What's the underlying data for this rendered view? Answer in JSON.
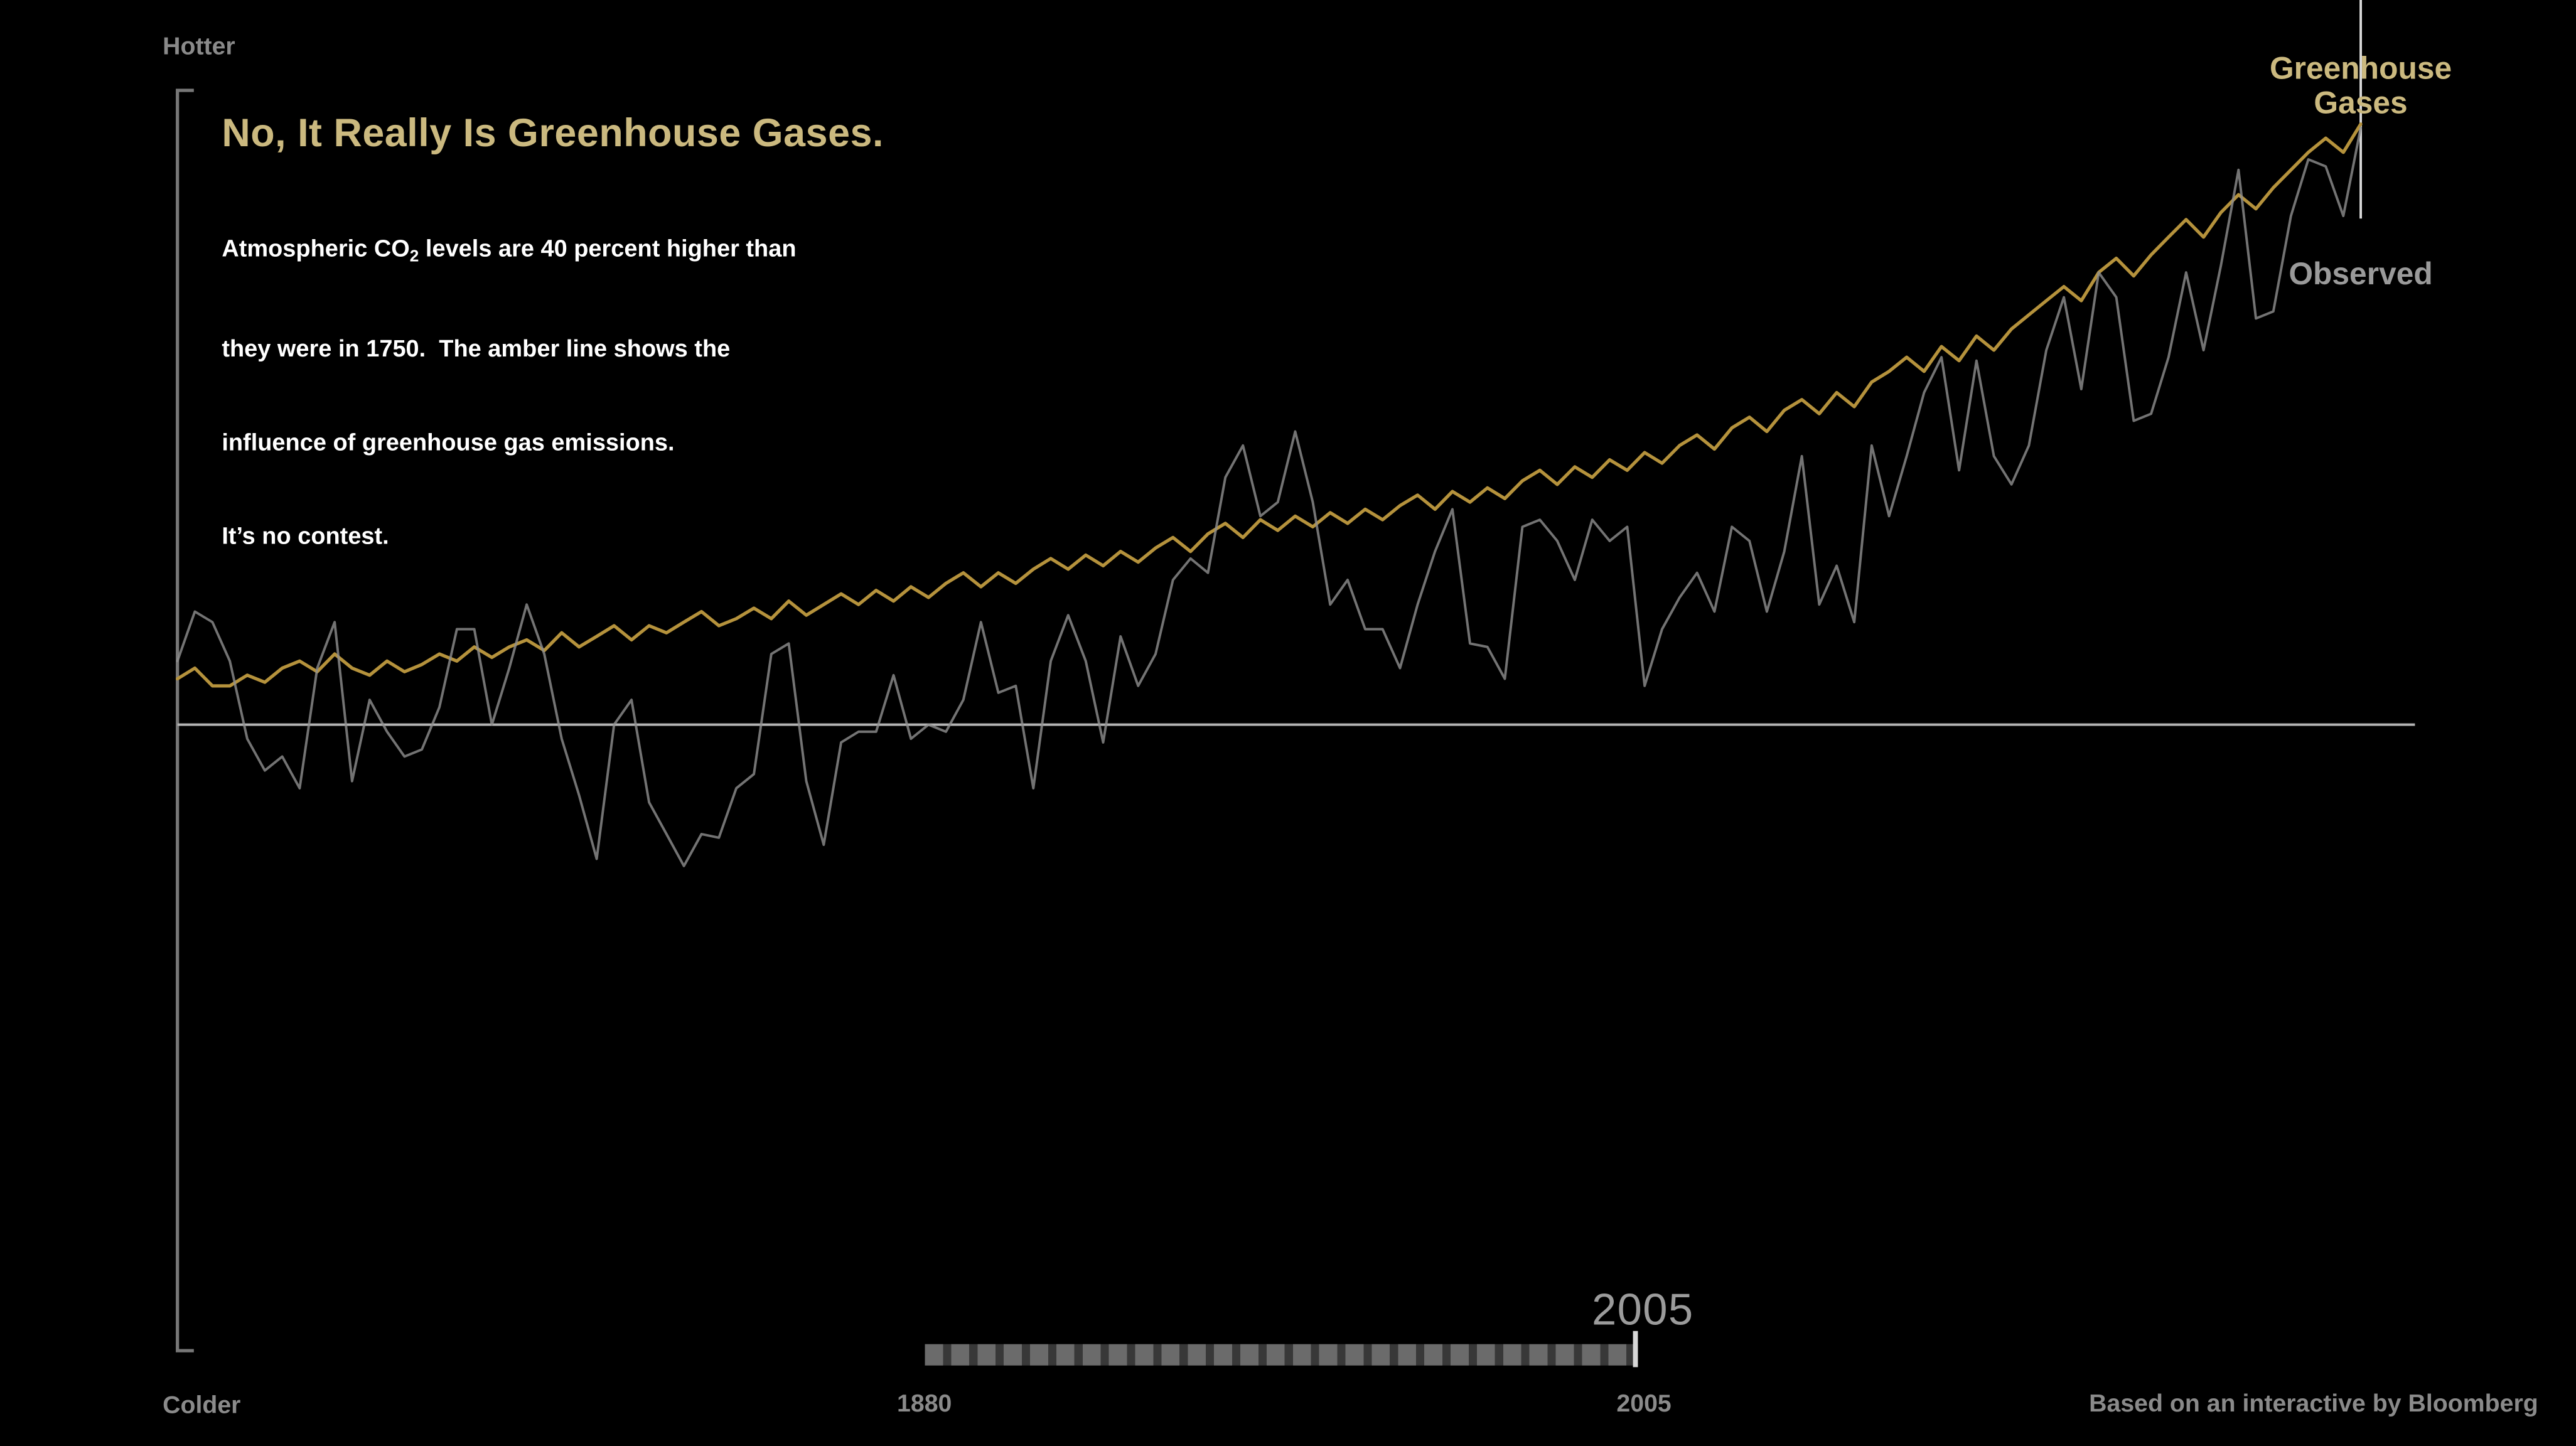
{
  "page": {
    "title": "No, It Really Is Greenhouse Gases.",
    "subtitle_line1_pre": "Atmospheric CO",
    "subtitle_line1_sub": "2",
    "subtitle_line1_post": " levels are 40 percent higher than",
    "subtitle_line2": "they were in 1750.  The amber line shows the",
    "subtitle_line3": "influence of greenhouse gas emissions.",
    "subtitle_line4": "It’s no contest.",
    "credit": "Based on an interactive by Bloomberg"
  },
  "axis": {
    "hotter": "Hotter",
    "colder": "Colder",
    "timeline_start": "1880",
    "timeline_end": "2005",
    "current_year": "2005"
  },
  "legend": {
    "greenhouse_line1": "Greenhouse",
    "greenhouse_line2": "Gases",
    "observed": "Observed"
  },
  "colors": {
    "background": "#000000",
    "amber_line": "#b5923c",
    "amber_text": "#cbb97f",
    "observed_line": "#909090",
    "gray_text": "#8a8a8a",
    "baseline": "#b3b3b3",
    "playhead": "#d8d8d8"
  },
  "chart_data": {
    "type": "line",
    "title": "No, It Really Is Greenhouse Gases.",
    "ylabel_top": "Hotter",
    "ylabel_bottom": "Colder",
    "x_ticks": [
      "1880",
      "2005"
    ],
    "baseline": 0,
    "ylim": [
      -1.8,
      1.8
    ],
    "grid": false,
    "legend_position": "top-right",
    "x": [
      1880,
      1881,
      1882,
      1883,
      1884,
      1885,
      1886,
      1887,
      1888,
      1889,
      1890,
      1891,
      1892,
      1893,
      1894,
      1895,
      1896,
      1897,
      1898,
      1899,
      1900,
      1901,
      1902,
      1903,
      1904,
      1905,
      1906,
      1907,
      1908,
      1909,
      1910,
      1911,
      1912,
      1913,
      1914,
      1915,
      1916,
      1917,
      1918,
      1919,
      1920,
      1921,
      1922,
      1923,
      1924,
      1925,
      1926,
      1927,
      1928,
      1929,
      1930,
      1931,
      1932,
      1933,
      1934,
      1935,
      1936,
      1937,
      1938,
      1939,
      1940,
      1941,
      1942,
      1943,
      1944,
      1945,
      1946,
      1947,
      1948,
      1949,
      1950,
      1951,
      1952,
      1953,
      1954,
      1955,
      1956,
      1957,
      1958,
      1959,
      1960,
      1961,
      1962,
      1963,
      1964,
      1965,
      1966,
      1967,
      1968,
      1969,
      1970,
      1971,
      1972,
      1973,
      1974,
      1975,
      1976,
      1977,
      1978,
      1979,
      1980,
      1981,
      1982,
      1983,
      1984,
      1985,
      1986,
      1987,
      1988,
      1989,
      1990,
      1991,
      1992,
      1993,
      1994,
      1995,
      1996,
      1997,
      1998,
      1999,
      2000,
      2001,
      2002,
      2003,
      2004,
      2005
    ],
    "series": [
      {
        "name": "Greenhouse Gases",
        "color": "#b5923c",
        "opacity": 1,
        "width": 2,
        "values": [
          0.13,
          0.16,
          0.11,
          0.11,
          0.14,
          0.12,
          0.16,
          0.18,
          0.15,
          0.2,
          0.16,
          0.14,
          0.18,
          0.15,
          0.17,
          0.2,
          0.18,
          0.22,
          0.19,
          0.22,
          0.24,
          0.21,
          0.26,
          0.22,
          0.25,
          0.28,
          0.24,
          0.28,
          0.26,
          0.29,
          0.32,
          0.28,
          0.3,
          0.33,
          0.3,
          0.35,
          0.31,
          0.34,
          0.37,
          0.34,
          0.38,
          0.35,
          0.39,
          0.36,
          0.4,
          0.43,
          0.39,
          0.43,
          0.4,
          0.44,
          0.47,
          0.44,
          0.48,
          0.45,
          0.49,
          0.46,
          0.5,
          0.53,
          0.49,
          0.54,
          0.57,
          0.53,
          0.58,
          0.55,
          0.59,
          0.56,
          0.6,
          0.57,
          0.61,
          0.58,
          0.62,
          0.65,
          0.61,
          0.66,
          0.63,
          0.67,
          0.64,
          0.69,
          0.72,
          0.68,
          0.73,
          0.7,
          0.75,
          0.72,
          0.77,
          0.74,
          0.79,
          0.82,
          0.78,
          0.84,
          0.87,
          0.83,
          0.89,
          0.92,
          0.88,
          0.94,
          0.9,
          0.97,
          1.0,
          1.04,
          1.0,
          1.07,
          1.03,
          1.1,
          1.06,
          1.12,
          1.16,
          1.2,
          1.24,
          1.2,
          1.28,
          1.32,
          1.27,
          1.33,
          1.38,
          1.43,
          1.38,
          1.45,
          1.5,
          1.46,
          1.52,
          1.57,
          1.62,
          1.66,
          1.62,
          1.7
        ]
      },
      {
        "name": "Observed",
        "color": "#909090",
        "opacity": 0.8,
        "width": 1.5,
        "values": [
          0.18,
          0.32,
          0.29,
          0.18,
          -0.04,
          -0.13,
          -0.09,
          -0.18,
          0.16,
          0.29,
          -0.16,
          0.07,
          -0.02,
          -0.09,
          -0.07,
          0.05,
          0.27,
          0.27,
          0.0,
          0.16,
          0.34,
          0.2,
          -0.04,
          -0.2,
          -0.38,
          0.0,
          0.07,
          -0.22,
          -0.31,
          -0.4,
          -0.31,
          -0.32,
          -0.18,
          -0.14,
          0.2,
          0.23,
          -0.16,
          -0.34,
          -0.05,
          -0.02,
          -0.02,
          0.14,
          -0.04,
          0.0,
          -0.02,
          0.07,
          0.29,
          0.09,
          0.11,
          -0.18,
          0.18,
          0.31,
          0.18,
          -0.05,
          0.25,
          0.11,
          0.2,
          0.41,
          0.47,
          0.43,
          0.7,
          0.79,
          0.59,
          0.63,
          0.83,
          0.63,
          0.34,
          0.41,
          0.27,
          0.27,
          0.16,
          0.34,
          0.49,
          0.61,
          0.23,
          0.22,
          0.13,
          0.56,
          0.58,
          0.52,
          0.41,
          0.58,
          0.52,
          0.56,
          0.11,
          0.27,
          0.36,
          0.43,
          0.32,
          0.56,
          0.52,
          0.32,
          0.49,
          0.76,
          0.34,
          0.45,
          0.29,
          0.79,
          0.59,
          0.76,
          0.94,
          1.04,
          0.72,
          1.03,
          0.76,
          0.68,
          0.79,
          1.06,
          1.21,
          0.95,
          1.28,
          1.21,
          0.86,
          0.88,
          1.04,
          1.28,
          1.06,
          1.3,
          1.57,
          1.15,
          1.17,
          1.44,
          1.6,
          1.58,
          1.44,
          1.69
        ]
      }
    ]
  }
}
